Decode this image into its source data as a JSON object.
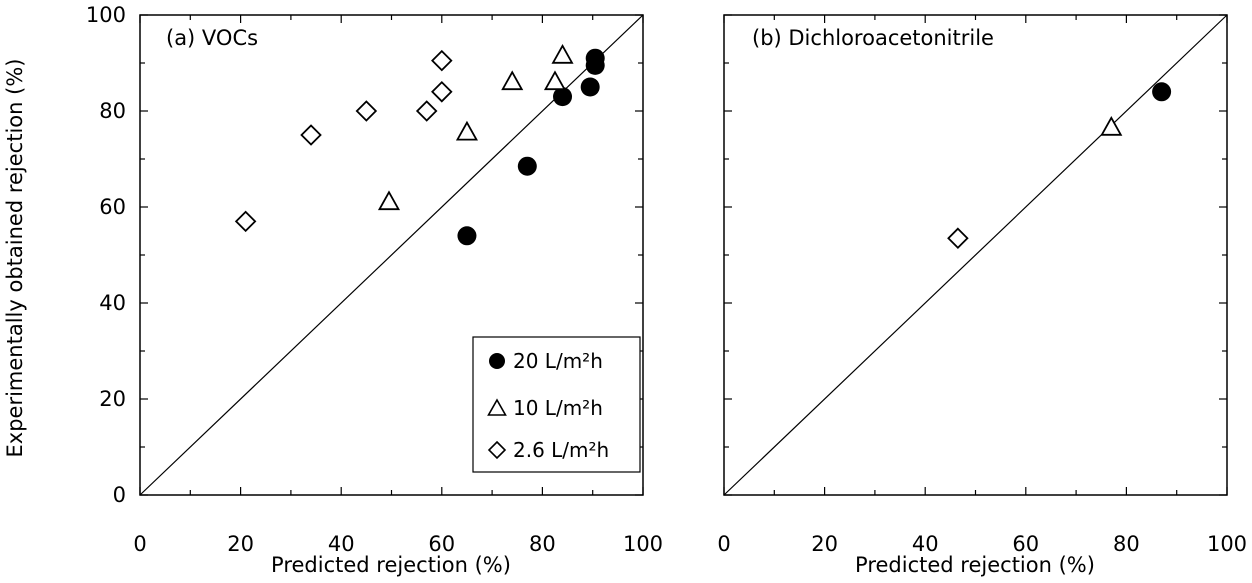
{
  "chart_data": [
    {
      "type": "scatter",
      "title": "(a) VOCs",
      "xlabel": "Predicted rejection (%)",
      "ylabel": "Experimentally obtained rejection (%)",
      "xlim": [
        0,
        100
      ],
      "ylim": [
        0,
        100
      ],
      "x_ticks": [
        "0",
        "20",
        "40",
        "60",
        "80",
        "100"
      ],
      "y_ticks": [
        "0",
        "20",
        "40",
        "60",
        "80",
        "100"
      ],
      "reference_line": "y = x",
      "legend_position": "bottom-right",
      "series": [
        {
          "name": "20 L/m²h",
          "marker": "filled-circle",
          "points": [
            [
              65,
              54
            ],
            [
              77,
              68.5
            ],
            [
              84,
              83
            ],
            [
              89.5,
              85
            ],
            [
              90.5,
              89.5
            ],
            [
              90.5,
              91
            ]
          ]
        },
        {
          "name": "10 L/m²h",
          "marker": "open-triangle",
          "points": [
            [
              49.5,
              61
            ],
            [
              65,
              75.5
            ],
            [
              74,
              86
            ],
            [
              82.5,
              86
            ],
            [
              84,
              91.5
            ]
          ]
        },
        {
          "name": "2.6 L/m²h",
          "marker": "open-diamond",
          "points": [
            [
              21,
              57
            ],
            [
              34,
              75
            ],
            [
              45,
              80
            ],
            [
              57,
              80
            ],
            [
              60,
              84
            ],
            [
              60,
              90.5
            ]
          ]
        }
      ]
    },
    {
      "type": "scatter",
      "title": "(b) Dichloroacetonitrile",
      "xlabel": "Predicted rejection (%)",
      "ylabel": "",
      "xlim": [
        0,
        100
      ],
      "ylim": [
        0,
        100
      ],
      "x_ticks": [
        "0",
        "20",
        "40",
        "60",
        "80",
        "100"
      ],
      "y_ticks": [],
      "reference_line": "y = x",
      "series": [
        {
          "name": "20 L/m²h",
          "marker": "filled-circle",
          "points": [
            [
              87,
              84
            ]
          ]
        },
        {
          "name": "10 L/m²h",
          "marker": "open-triangle",
          "points": [
            [
              77,
              76.5
            ]
          ]
        },
        {
          "name": "2.6 L/m²h",
          "marker": "open-diamond",
          "points": [
            [
              46.5,
              53.5
            ]
          ]
        }
      ]
    }
  ]
}
